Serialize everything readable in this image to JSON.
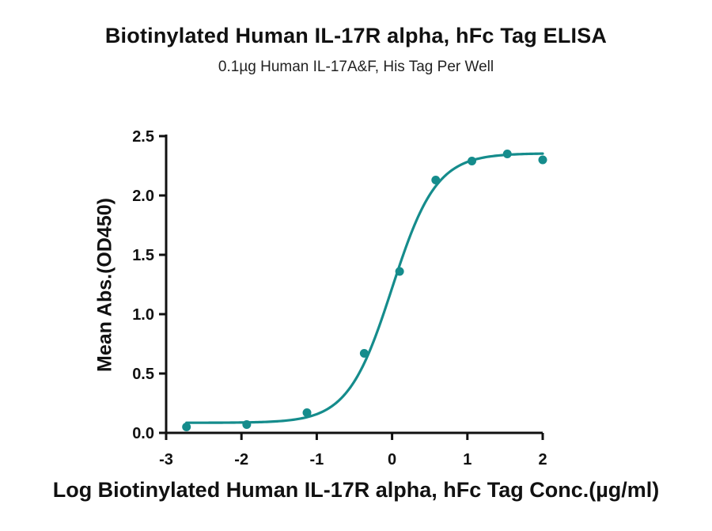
{
  "chart_data": {
    "type": "scatter",
    "title": "Biotinylated Human IL-17R alpha, hFc Tag ELISA",
    "subtitle": "0.1µg Human IL-17A&F, His Tag Per Well",
    "xlabel": "Log Biotinylated Human IL-17R alpha, hFc Tag Conc.(µg/ml)",
    "ylabel": "Mean Abs.(OD450)",
    "xlim": [
      -3,
      2
    ],
    "ylim": [
      0,
      2.5
    ],
    "xticks": [
      "-3",
      "-2",
      "-1",
      "0",
      "1",
      "2"
    ],
    "yticks": [
      "0.0",
      "0.5",
      "1.0",
      "1.5",
      "2.0",
      "2.5"
    ],
    "grid": false,
    "colors": {
      "series": "#158c8c",
      "axis": "#111111"
    },
    "series": [
      {
        "points": [
          {
            "x": -2.73,
            "y": 0.05
          },
          {
            "x": -1.93,
            "y": 0.07
          },
          {
            "x": -1.13,
            "y": 0.17
          },
          {
            "x": -0.37,
            "y": 0.67
          },
          {
            "x": 0.1,
            "y": 1.36
          },
          {
            "x": 0.58,
            "y": 2.13
          },
          {
            "x": 1.06,
            "y": 2.29
          },
          {
            "x": 1.53,
            "y": 2.35
          },
          {
            "x": 2.0,
            "y": 2.3
          }
        ],
        "fit": {
          "model": "4PL",
          "bottom": 0.085,
          "top": 2.355,
          "log_ec50": 0.0,
          "hill": 1.48,
          "x_range": [
            -2.73,
            2.0
          ]
        }
      }
    ]
  }
}
